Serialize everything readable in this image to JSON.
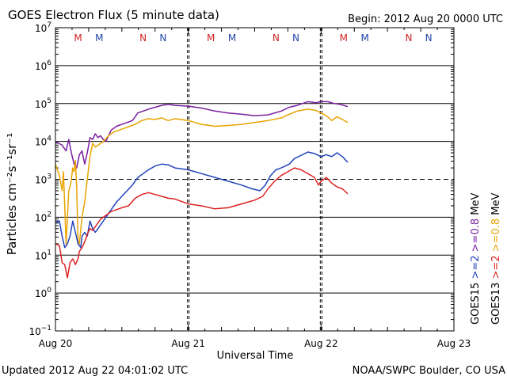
{
  "chart_data": {
    "type": "line",
    "title": "GOES Electron Flux (5 minute data)",
    "begin_label": "Begin: 2012 Aug 20 0000 UTC",
    "xlabel": "Universal Time",
    "ylabel": "Particles cm⁻²s⁻¹sr⁻¹",
    "y_scale": "log",
    "ylim_exp": [
      -1,
      7
    ],
    "x_range_days": [
      0,
      3
    ],
    "x_ticks": [
      {
        "day": 0,
        "label": "Aug 20"
      },
      {
        "day": 1,
        "label": "Aug 21"
      },
      {
        "day": 2,
        "label": "Aug 22"
      },
      {
        "day": 3,
        "label": "Aug 23"
      }
    ],
    "y_ticks": [
      {
        "exp": 7,
        "label": "10",
        "sup": "7"
      },
      {
        "exp": 6,
        "label": "10",
        "sup": "6"
      },
      {
        "exp": 5,
        "label": "10",
        "sup": "5"
      },
      {
        "exp": 4,
        "label": "10",
        "sup": "4"
      },
      {
        "exp": 3,
        "label": "10",
        "sup": "3"
      },
      {
        "exp": 2,
        "label": "10",
        "sup": "2"
      },
      {
        "exp": 1,
        "label": "10",
        "sup": "1"
      },
      {
        "exp": 0,
        "label": "10",
        "sup": "0"
      },
      {
        "exp": -1,
        "label": "10",
        "sup": "−1"
      }
    ],
    "threshold_exp": 3,
    "markers": [
      {
        "day": 0.17,
        "label": "M",
        "color": "#cc2222"
      },
      {
        "day": 0.33,
        "label": "M",
        "color": "#2244aa"
      },
      {
        "day": 0.66,
        "label": "N",
        "color": "#cc2222"
      },
      {
        "day": 0.81,
        "label": "N",
        "color": "#2244aa"
      },
      {
        "day": 1.17,
        "label": "M",
        "color": "#cc2222"
      },
      {
        "day": 1.33,
        "label": "M",
        "color": "#2244aa"
      },
      {
        "day": 1.66,
        "label": "N",
        "color": "#cc2222"
      },
      {
        "day": 1.81,
        "label": "N",
        "color": "#2244aa"
      },
      {
        "day": 2.17,
        "label": "M",
        "color": "#cc2222"
      },
      {
        "day": 2.33,
        "label": "M",
        "color": "#2244aa"
      },
      {
        "day": 2.66,
        "label": "N",
        "color": "#cc2222"
      },
      {
        "day": 2.81,
        "label": "N",
        "color": "#2244aa"
      }
    ],
    "midnight_dashed_days": [
      1,
      2
    ],
    "legend": {
      "left_column": [
        {
          "text": "GOES15",
          "color": "#000000"
        },
        {
          "text": ">=2",
          "color": "#2244bb"
        },
        {
          "text": ">=0.8",
          "color": "#7a1fa0"
        }
      ],
      "right_column": [
        {
          "text": "GOES13",
          "color": "#000000"
        },
        {
          "text": ">=2",
          "color": "#dd2222"
        },
        {
          "text": ">=0.8",
          "color": "#e8a400"
        },
        {
          "text": "MeV",
          "color": "#000000"
        }
      ],
      "unit_left": "MeV"
    },
    "series": [
      {
        "name": "GOES15 >=0.8 MeV",
        "color": "#7a1fa0",
        "points": [
          [
            0.0,
            4.0
          ],
          [
            0.05,
            3.9
          ],
          [
            0.08,
            3.75
          ],
          [
            0.1,
            4.05
          ],
          [
            0.12,
            3.7
          ],
          [
            0.14,
            3.4
          ],
          [
            0.16,
            3.3
          ],
          [
            0.18,
            3.65
          ],
          [
            0.2,
            3.75
          ],
          [
            0.22,
            3.4
          ],
          [
            0.24,
            3.7
          ],
          [
            0.26,
            4.1
          ],
          [
            0.28,
            4.05
          ],
          [
            0.3,
            4.2
          ],
          [
            0.32,
            4.1
          ],
          [
            0.34,
            4.15
          ],
          [
            0.36,
            4.05
          ],
          [
            0.38,
            4.0
          ],
          [
            0.42,
            4.3
          ],
          [
            0.46,
            4.4
          ],
          [
            0.5,
            4.45
          ],
          [
            0.54,
            4.5
          ],
          [
            0.58,
            4.55
          ],
          [
            0.62,
            4.75
          ],
          [
            0.66,
            4.8
          ],
          [
            0.7,
            4.85
          ],
          [
            0.75,
            4.9
          ],
          [
            0.8,
            4.95
          ],
          [
            0.85,
            4.98
          ],
          [
            0.9,
            4.95
          ],
          [
            1.0,
            4.93
          ],
          [
            1.1,
            4.88
          ],
          [
            1.2,
            4.8
          ],
          [
            1.3,
            4.75
          ],
          [
            1.4,
            4.72
          ],
          [
            1.5,
            4.68
          ],
          [
            1.6,
            4.7
          ],
          [
            1.7,
            4.8
          ],
          [
            1.76,
            4.9
          ],
          [
            1.82,
            4.95
          ],
          [
            1.9,
            5.05
          ],
          [
            1.96,
            5.02
          ],
          [
            2.0,
            5.05
          ],
          [
            2.05,
            5.05
          ],
          [
            2.1,
            5.0
          ],
          [
            2.14,
            4.98
          ],
          [
            2.2,
            4.92
          ]
        ]
      },
      {
        "name": "GOES13 >=0.8 MeV",
        "color": "#e8a400",
        "points": [
          [
            0.0,
            3.4
          ],
          [
            0.03,
            3.1
          ],
          [
            0.05,
            2.7
          ],
          [
            0.06,
            3.2
          ],
          [
            0.07,
            2.3
          ],
          [
            0.08,
            1.3
          ],
          [
            0.09,
            2.0
          ],
          [
            0.1,
            2.7
          ],
          [
            0.11,
            2.8
          ],
          [
            0.12,
            3.0
          ],
          [
            0.13,
            3.3
          ],
          [
            0.14,
            3.2
          ],
          [
            0.15,
            3.5
          ],
          [
            0.16,
            2.8
          ],
          [
            0.17,
            1.4
          ],
          [
            0.18,
            1.3
          ],
          [
            0.2,
            2.0
          ],
          [
            0.22,
            2.4
          ],
          [
            0.24,
            3.0
          ],
          [
            0.26,
            3.6
          ],
          [
            0.28,
            3.95
          ],
          [
            0.3,
            3.85
          ],
          [
            0.32,
            3.9
          ],
          [
            0.36,
            4.0
          ],
          [
            0.4,
            4.15
          ],
          [
            0.44,
            4.25
          ],
          [
            0.48,
            4.3
          ],
          [
            0.52,
            4.35
          ],
          [
            0.56,
            4.4
          ],
          [
            0.6,
            4.45
          ],
          [
            0.65,
            4.55
          ],
          [
            0.7,
            4.6
          ],
          [
            0.75,
            4.58
          ],
          [
            0.8,
            4.62
          ],
          [
            0.85,
            4.55
          ],
          [
            0.9,
            4.6
          ],
          [
            1.0,
            4.55
          ],
          [
            1.1,
            4.45
          ],
          [
            1.2,
            4.4
          ],
          [
            1.3,
            4.42
          ],
          [
            1.4,
            4.45
          ],
          [
            1.5,
            4.5
          ],
          [
            1.6,
            4.55
          ],
          [
            1.7,
            4.62
          ],
          [
            1.75,
            4.7
          ],
          [
            1.82,
            4.8
          ],
          [
            1.9,
            4.85
          ],
          [
            1.96,
            4.82
          ],
          [
            2.0,
            4.75
          ],
          [
            2.05,
            4.65
          ],
          [
            2.08,
            4.55
          ],
          [
            2.12,
            4.65
          ],
          [
            2.16,
            4.58
          ],
          [
            2.2,
            4.5
          ]
        ]
      },
      {
        "name": "GOES15 >=2 MeV",
        "color": "#2244bb",
        "points": [
          [
            0.0,
            1.85
          ],
          [
            0.03,
            1.9
          ],
          [
            0.05,
            1.5
          ],
          [
            0.07,
            1.2
          ],
          [
            0.09,
            1.3
          ],
          [
            0.11,
            1.5
          ],
          [
            0.13,
            1.9
          ],
          [
            0.15,
            1.6
          ],
          [
            0.17,
            1.3
          ],
          [
            0.19,
            1.2
          ],
          [
            0.2,
            1.5
          ],
          [
            0.22,
            1.6
          ],
          [
            0.24,
            1.5
          ],
          [
            0.26,
            1.9
          ],
          [
            0.28,
            1.7
          ],
          [
            0.3,
            1.6
          ],
          [
            0.32,
            1.7
          ],
          [
            0.35,
            1.85
          ],
          [
            0.38,
            2.0
          ],
          [
            0.42,
            2.2
          ],
          [
            0.46,
            2.4
          ],
          [
            0.5,
            2.55
          ],
          [
            0.54,
            2.7
          ],
          [
            0.58,
            2.85
          ],
          [
            0.62,
            3.05
          ],
          [
            0.66,
            3.15
          ],
          [
            0.7,
            3.25
          ],
          [
            0.75,
            3.35
          ],
          [
            0.8,
            3.4
          ],
          [
            0.85,
            3.38
          ],
          [
            0.9,
            3.3
          ],
          [
            1.0,
            3.25
          ],
          [
            1.1,
            3.15
          ],
          [
            1.2,
            3.05
          ],
          [
            1.3,
            2.95
          ],
          [
            1.4,
            2.85
          ],
          [
            1.48,
            2.75
          ],
          [
            1.54,
            2.7
          ],
          [
            1.58,
            2.85
          ],
          [
            1.62,
            3.1
          ],
          [
            1.66,
            3.25
          ],
          [
            1.7,
            3.3
          ],
          [
            1.76,
            3.4
          ],
          [
            1.8,
            3.55
          ],
          [
            1.86,
            3.65
          ],
          [
            1.9,
            3.72
          ],
          [
            1.95,
            3.68
          ],
          [
            2.0,
            3.6
          ],
          [
            2.04,
            3.65
          ],
          [
            2.08,
            3.6
          ],
          [
            2.12,
            3.7
          ],
          [
            2.16,
            3.6
          ],
          [
            2.2,
            3.45
          ]
        ]
      },
      {
        "name": "GOES13 >=2 MeV",
        "color": "#dd2222",
        "points": [
          [
            0.0,
            1.3
          ],
          [
            0.03,
            1.25
          ],
          [
            0.05,
            0.8
          ],
          [
            0.07,
            0.75
          ],
          [
            0.09,
            0.4
          ],
          [
            0.11,
            0.8
          ],
          [
            0.13,
            0.9
          ],
          [
            0.15,
            0.75
          ],
          [
            0.17,
            0.9
          ],
          [
            0.18,
            1.1
          ],
          [
            0.2,
            1.2
          ],
          [
            0.22,
            1.35
          ],
          [
            0.24,
            1.55
          ],
          [
            0.26,
            1.7
          ],
          [
            0.28,
            1.65
          ],
          [
            0.3,
            1.75
          ],
          [
            0.34,
            1.95
          ],
          [
            0.38,
            2.05
          ],
          [
            0.42,
            2.15
          ],
          [
            0.46,
            2.2
          ],
          [
            0.5,
            2.25
          ],
          [
            0.55,
            2.3
          ],
          [
            0.6,
            2.5
          ],
          [
            0.65,
            2.6
          ],
          [
            0.7,
            2.65
          ],
          [
            0.75,
            2.6
          ],
          [
            0.8,
            2.55
          ],
          [
            0.85,
            2.5
          ],
          [
            0.9,
            2.48
          ],
          [
            1.0,
            2.35
          ],
          [
            1.1,
            2.3
          ],
          [
            1.2,
            2.22
          ],
          [
            1.3,
            2.25
          ],
          [
            1.4,
            2.35
          ],
          [
            1.5,
            2.45
          ],
          [
            1.56,
            2.55
          ],
          [
            1.6,
            2.75
          ],
          [
            1.65,
            2.95
          ],
          [
            1.7,
            3.1
          ],
          [
            1.75,
            3.2
          ],
          [
            1.8,
            3.3
          ],
          [
            1.85,
            3.25
          ],
          [
            1.9,
            3.15
          ],
          [
            1.95,
            3.05
          ],
          [
            1.98,
            2.85
          ],
          [
            2.0,
            2.95
          ],
          [
            2.04,
            3.05
          ],
          [
            2.08,
            2.9
          ],
          [
            2.12,
            2.8
          ],
          [
            2.16,
            2.75
          ],
          [
            2.2,
            2.62
          ]
        ]
      }
    ]
  },
  "footer": {
    "updated": "Updated 2012 Aug 22 04:01:02 UTC",
    "credit": "NOAA/SWPC Boulder, CO USA"
  }
}
